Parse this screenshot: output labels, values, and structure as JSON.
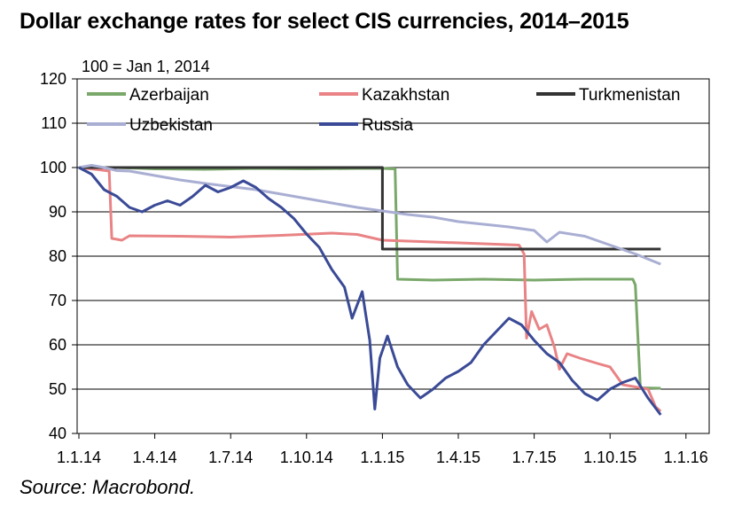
{
  "title": "Dollar exchange rates for select CIS currencies, 2014–2015",
  "source": "Source: Macrobond.",
  "chart_data": {
    "type": "line",
    "title": "Dollar exchange rates for select CIS currencies, 2014–2015",
    "index_note": "100 = Jan 1, 2014",
    "xlabel": "",
    "ylabel": "",
    "ylim": [
      40,
      120
    ],
    "y_ticks": [
      40,
      50,
      60,
      70,
      80,
      90,
      100,
      110,
      120
    ],
    "x_ticks": [
      "1.1.14",
      "1.4.14",
      "1.7.14",
      "1.10.14",
      "1.1.15",
      "1.4.15",
      "1.7.15",
      "1.10.15",
      "1.1.16"
    ],
    "grid": "horizontal",
    "legend": "top",
    "series": [
      {
        "name": "Azerbaijan",
        "color": "#7aa86a",
        "points": [
          [
            0,
            100
          ],
          [
            1.5,
            100
          ],
          [
            3,
            99.7
          ],
          [
            5,
            99.6
          ],
          [
            7,
            99.8
          ],
          [
            9,
            99.7
          ],
          [
            11,
            99.8
          ],
          [
            12,
            99.8
          ],
          [
            12.5,
            99.7
          ],
          [
            12.6,
            74.8
          ],
          [
            14,
            74.6
          ],
          [
            16,
            74.8
          ],
          [
            18,
            74.6
          ],
          [
            20,
            74.8
          ],
          [
            21.9,
            74.8
          ],
          [
            22,
            73.5
          ],
          [
            22.2,
            50.3
          ],
          [
            23,
            50.2
          ]
        ]
      },
      {
        "name": "Kazakhstan",
        "color": "#e98385",
        "points": [
          [
            0,
            100
          ],
          [
            0.8,
            99.5
          ],
          [
            1.2,
            99.2
          ],
          [
            1.3,
            84
          ],
          [
            1.7,
            83.6
          ],
          [
            2,
            84.6
          ],
          [
            4,
            84.5
          ],
          [
            6,
            84.3
          ],
          [
            8,
            84.7
          ],
          [
            10,
            85.2
          ],
          [
            11,
            84.9
          ],
          [
            12,
            83.6
          ],
          [
            14,
            83.2
          ],
          [
            16,
            82.8
          ],
          [
            17.4,
            82.5
          ],
          [
            17.6,
            80.5
          ],
          [
            17.7,
            61.5
          ],
          [
            17.9,
            67.5
          ],
          [
            18.2,
            63.5
          ],
          [
            18.5,
            64.5
          ],
          [
            18.8,
            59.5
          ],
          [
            19,
            54.5
          ],
          [
            19.3,
            58
          ],
          [
            19.8,
            57
          ],
          [
            20.5,
            55.8
          ],
          [
            21,
            55
          ],
          [
            21.5,
            51
          ],
          [
            22,
            50.5
          ],
          [
            22.5,
            50
          ],
          [
            22.8,
            46
          ],
          [
            23,
            45
          ]
        ]
      },
      {
        "name": "Turkmenistan",
        "color": "#333333",
        "points": [
          [
            0,
            100
          ],
          [
            12,
            100
          ],
          [
            12,
            81.6
          ],
          [
            23,
            81.6
          ]
        ]
      },
      {
        "name": "Uzbekistan",
        "color": "#a9aed3",
        "points": [
          [
            0,
            100
          ],
          [
            0.5,
            100.5
          ],
          [
            1,
            100
          ],
          [
            1.5,
            99.3
          ],
          [
            2,
            99.2
          ],
          [
            3,
            98.2
          ],
          [
            4,
            97.2
          ],
          [
            5,
            96.4
          ],
          [
            6,
            95.7
          ],
          [
            7,
            95
          ],
          [
            8,
            94
          ],
          [
            9,
            93
          ],
          [
            10,
            92
          ],
          [
            11,
            91
          ],
          [
            12,
            90.2
          ],
          [
            13,
            89.4
          ],
          [
            14,
            88.8
          ],
          [
            15,
            87.8
          ],
          [
            16,
            87.2
          ],
          [
            17,
            86.6
          ],
          [
            18,
            85.8
          ],
          [
            18.5,
            83.2
          ],
          [
            19,
            85.4
          ],
          [
            20,
            84.5
          ],
          [
            21,
            82.5
          ],
          [
            22,
            80.5
          ],
          [
            23,
            78.2
          ]
        ]
      },
      {
        "name": "Russia",
        "color": "#3a4a96",
        "points": [
          [
            0,
            100
          ],
          [
            0.5,
            98.5
          ],
          [
            1,
            95
          ],
          [
            1.5,
            93.5
          ],
          [
            2,
            91
          ],
          [
            2.5,
            90
          ],
          [
            3,
            91.5
          ],
          [
            3.5,
            92.5
          ],
          [
            4,
            91.5
          ],
          [
            4.5,
            93.5
          ],
          [
            5,
            96
          ],
          [
            5.5,
            94.5
          ],
          [
            6,
            95.5
          ],
          [
            6.5,
            97
          ],
          [
            7,
            95.5
          ],
          [
            7.5,
            93
          ],
          [
            8,
            91
          ],
          [
            8.5,
            88.5
          ],
          [
            9,
            85
          ],
          [
            9.5,
            82
          ],
          [
            10,
            77
          ],
          [
            10.5,
            73
          ],
          [
            10.8,
            66
          ],
          [
            11.2,
            72
          ],
          [
            11.5,
            61
          ],
          [
            11.7,
            45.5
          ],
          [
            11.9,
            57
          ],
          [
            12.2,
            62
          ],
          [
            12.6,
            55
          ],
          [
            13,
            51
          ],
          [
            13.5,
            48
          ],
          [
            14,
            50
          ],
          [
            14.5,
            52.5
          ],
          [
            15,
            54
          ],
          [
            15.5,
            56
          ],
          [
            16,
            60
          ],
          [
            16.5,
            63
          ],
          [
            17,
            66
          ],
          [
            17.5,
            64.5
          ],
          [
            18,
            61
          ],
          [
            18.5,
            58
          ],
          [
            19,
            56
          ],
          [
            19.5,
            52
          ],
          [
            20,
            49
          ],
          [
            20.5,
            47.5
          ],
          [
            21,
            50
          ],
          [
            21.5,
            51.5
          ],
          [
            22,
            52.5
          ],
          [
            22.5,
            48
          ],
          [
            23,
            44.2
          ]
        ]
      }
    ]
  }
}
